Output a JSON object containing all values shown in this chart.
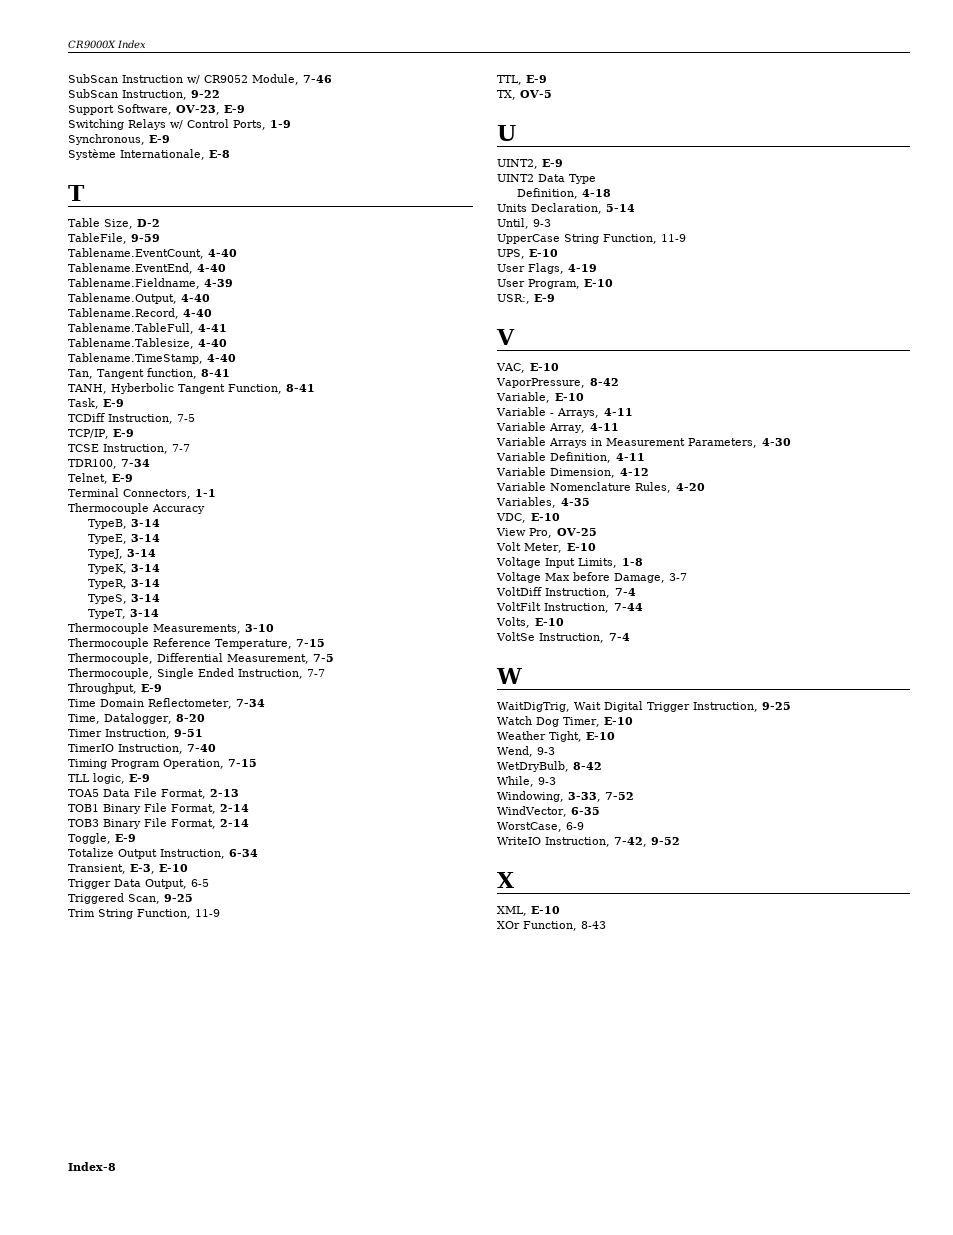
{
  "page_width": 9.54,
  "page_height": 12.35,
  "bg_color": "#ffffff",
  "header_text": "CR9000X Index",
  "footer_text": "Index-8",
  "left_column": [
    {
      "text": "SubScan Instruction w/ CR9052 Module, ",
      "bold_suffix": "7-46",
      "indent": 0
    },
    {
      "text": "SubScan Instruction, ",
      "bold_suffix": "9-22",
      "indent": 0
    },
    {
      "text": "Support Software, ",
      "bold_suffix": "OV-23",
      "extra": ", ",
      "bold_suffix2": "E-9",
      "indent": 0
    },
    {
      "text": "Switching Relays w/ Control Ports, ",
      "bold_suffix": "1-9",
      "indent": 0
    },
    {
      "text": "Synchronous, ",
      "bold_suffix": "E-9",
      "indent": 0
    },
    {
      "text": "Système Internationale, ",
      "bold_suffix": "E-8",
      "indent": 0
    },
    {
      "type": "section",
      "letter": "T"
    },
    {
      "text": "Table Size, ",
      "bold_suffix": "D-2",
      "indent": 0
    },
    {
      "text": "TableFile, ",
      "bold_suffix": "9-59",
      "indent": 0
    },
    {
      "text": "Tablename.EventCount, ",
      "bold_suffix": "4-40",
      "indent": 0
    },
    {
      "text": "Tablename.EventEnd, ",
      "bold_suffix": "4-40",
      "indent": 0
    },
    {
      "text": "Tablename.Fieldname, ",
      "bold_suffix": "4-39",
      "indent": 0
    },
    {
      "text": "Tablename.Output, ",
      "bold_suffix": "4-40",
      "indent": 0
    },
    {
      "text": "Tablename.Record, ",
      "bold_suffix": "4-40",
      "indent": 0
    },
    {
      "text": "Tablename.TableFull, ",
      "bold_suffix": "4-41",
      "indent": 0
    },
    {
      "text": "Tablename.Tablesize, ",
      "bold_suffix": "4-40",
      "indent": 0
    },
    {
      "text": "Tablename.TimeStamp, ",
      "bold_suffix": "4-40",
      "indent": 0
    },
    {
      "text": "Tan, Tangent function, ",
      "bold_suffix": "8-41",
      "indent": 0
    },
    {
      "text": "TANH, Hyberbolic Tangent Function, ",
      "bold_suffix": "8-41",
      "indent": 0
    },
    {
      "text": "Task, ",
      "bold_suffix": "E-9",
      "indent": 0
    },
    {
      "text": "TCDiff Instruction, 7-5",
      "indent": 0
    },
    {
      "text": "TCP/IP, ",
      "bold_suffix": "E-9",
      "indent": 0
    },
    {
      "text": "TCSE Instruction, 7-7",
      "indent": 0
    },
    {
      "text": "TDR100, ",
      "bold_suffix": "7-34",
      "indent": 0
    },
    {
      "text": "Telnet, ",
      "bold_suffix": "E-9",
      "indent": 0
    },
    {
      "text": "Terminal Connectors, ",
      "bold_suffix": "1-1",
      "indent": 0
    },
    {
      "text": "Thermocouple Accuracy",
      "indent": 0
    },
    {
      "text": "TypeB, ",
      "bold_suffix": "3-14",
      "indent": 1
    },
    {
      "text": "TypeE, ",
      "bold_suffix": "3-14",
      "indent": 1
    },
    {
      "text": "TypeJ, ",
      "bold_suffix": "3-14",
      "indent": 1
    },
    {
      "text": "TypeK, ",
      "bold_suffix": "3-14",
      "indent": 1
    },
    {
      "text": "TypeR, ",
      "bold_suffix": "3-14",
      "indent": 1
    },
    {
      "text": "TypeS, ",
      "bold_suffix": "3-14",
      "indent": 1
    },
    {
      "text": "TypeT, ",
      "bold_suffix": "3-14",
      "indent": 1
    },
    {
      "text": "Thermocouple Measurements, ",
      "bold_suffix": "3-10",
      "indent": 0
    },
    {
      "text": "Thermocouple Reference Temperature, ",
      "bold_suffix": "7-15",
      "indent": 0
    },
    {
      "text": "Thermocouple, Differential Measurement, ",
      "bold_suffix": "7-5",
      "indent": 0
    },
    {
      "text": "Thermocouple, Single Ended Instruction, 7-7",
      "indent": 0
    },
    {
      "text": "Throughput, ",
      "bold_suffix": "E-9",
      "indent": 0
    },
    {
      "text": "Time Domain Reflectometer, ",
      "bold_suffix": "7-34",
      "indent": 0
    },
    {
      "text": "Time, Datalogger, ",
      "bold_suffix": "8-20",
      "indent": 0
    },
    {
      "text": "Timer Instruction, ",
      "bold_suffix": "9-51",
      "indent": 0
    },
    {
      "text": "TimerIO Instruction, ",
      "bold_suffix": "7-40",
      "indent": 0
    },
    {
      "text": "Timing Program Operation, ",
      "bold_suffix": "7-15",
      "indent": 0
    },
    {
      "text": "TLL logic, ",
      "bold_suffix": "E-9",
      "indent": 0
    },
    {
      "text": "TOA5 Data File Format, ",
      "bold_suffix": "2-13",
      "indent": 0
    },
    {
      "text": "TOB1 Binary File Format, ",
      "bold_suffix": "2-14",
      "indent": 0
    },
    {
      "text": "TOB3 Binary File Format, ",
      "bold_suffix": "2-14",
      "indent": 0
    },
    {
      "text": "Toggle, ",
      "bold_suffix": "E-9",
      "indent": 0
    },
    {
      "text": "Totalize Output Instruction, ",
      "bold_suffix": "6-34",
      "indent": 0
    },
    {
      "text": "Transient, ",
      "bold_suffix": "E-3",
      "extra": ", ",
      "bold_suffix2": "E-10",
      "indent": 0
    },
    {
      "text": "Trigger Data Output, 6-5",
      "indent": 0
    },
    {
      "text": "Triggered Scan, ",
      "bold_suffix": "9-25",
      "indent": 0
    },
    {
      "text": "Trim String Function, 11-9",
      "indent": 0
    }
  ],
  "right_col_top": [
    {
      "text": "TTL, ",
      "bold_suffix": "E-9",
      "indent": 0
    },
    {
      "text": "TX, ",
      "bold_suffix": "OV-5",
      "indent": 0
    }
  ],
  "right_sections": [
    {
      "letter": "U",
      "items": [
        {
          "text": "UINT2, ",
          "bold_suffix": "E-9",
          "indent": 0
        },
        {
          "text": "UINT2 Data Type",
          "indent": 0
        },
        {
          "text": "Definition, ",
          "bold_suffix": "4-18",
          "indent": 1
        },
        {
          "text": "Units Declaration, ",
          "bold_suffix": "5-14",
          "indent": 0
        },
        {
          "text": "Until, 9-3",
          "indent": 0
        },
        {
          "text": "UpperCase String Function, 11-9",
          "indent": 0
        },
        {
          "text": "UPS, ",
          "bold_suffix": "E-10",
          "indent": 0
        },
        {
          "text": "User Flags, ",
          "bold_suffix": "4-19",
          "indent": 0
        },
        {
          "text": "User Program, ",
          "bold_suffix": "E-10",
          "indent": 0
        },
        {
          "text": "USR:, ",
          "bold_suffix": "E-9",
          "indent": 0
        }
      ]
    },
    {
      "letter": "V",
      "items": [
        {
          "text": "VAC, ",
          "bold_suffix": "E-10",
          "indent": 0
        },
        {
          "text": "VaporPressure, ",
          "bold_suffix": "8-42",
          "indent": 0
        },
        {
          "text": "Variable, ",
          "bold_suffix": "E-10",
          "indent": 0
        },
        {
          "text": "Variable - Arrays, ",
          "bold_suffix": "4-11",
          "indent": 0
        },
        {
          "text": "Variable Array, ",
          "bold_suffix": "4-11",
          "indent": 0
        },
        {
          "text": "Variable Arrays in Measurement Parameters, ",
          "bold_suffix": "4-30",
          "indent": 0
        },
        {
          "text": "Variable Definition, ",
          "bold_suffix": "4-11",
          "indent": 0
        },
        {
          "text": "Variable Dimension, ",
          "bold_suffix": "4-12",
          "indent": 0
        },
        {
          "text": "Variable Nomenclature Rules, ",
          "bold_suffix": "4-20",
          "indent": 0
        },
        {
          "text": "Variables, ",
          "bold_suffix": "4-35",
          "indent": 0
        },
        {
          "text": "VDC, ",
          "bold_suffix": "E-10",
          "indent": 0
        },
        {
          "text": "View Pro, ",
          "bold_suffix": "OV-25",
          "indent": 0
        },
        {
          "text": "Volt Meter, ",
          "bold_suffix": "E-10",
          "indent": 0
        },
        {
          "text": "Voltage Input Limits, ",
          "bold_suffix": "1-8",
          "indent": 0
        },
        {
          "text": "Voltage Max before Damage, 3-7",
          "indent": 0
        },
        {
          "text": "VoltDiff Instruction, ",
          "bold_suffix": "7-4",
          "indent": 0
        },
        {
          "text": "VoltFilt Instruction, ",
          "bold_suffix": "7-44",
          "indent": 0
        },
        {
          "text": "Volts, ",
          "bold_suffix": "E-10",
          "indent": 0
        },
        {
          "text": "VoltSe Instruction, ",
          "bold_suffix": "7-4",
          "indent": 0
        }
      ]
    },
    {
      "letter": "W",
      "items": [
        {
          "text": "WaitDigTrig, Wait Digital Trigger Instruction, ",
          "bold_suffix": "9-25",
          "indent": 0
        },
        {
          "text": "Watch Dog Timer, ",
          "bold_suffix": "E-10",
          "indent": 0
        },
        {
          "text": "Weather Tight, ",
          "bold_suffix": "E-10",
          "indent": 0
        },
        {
          "text": "Wend, 9-3",
          "indent": 0
        },
        {
          "text": "WetDryBulb, ",
          "bold_suffix": "8-42",
          "indent": 0
        },
        {
          "text": "While, 9-3",
          "indent": 0
        },
        {
          "text": "Windowing, ",
          "bold_suffix": "3-33",
          "extra": ", ",
          "bold_suffix2": "7-52",
          "indent": 0
        },
        {
          "text": "WindVector, ",
          "bold_suffix": "6-35",
          "indent": 0
        },
        {
          "text": "WorstCase, 6-9",
          "indent": 0
        },
        {
          "text": "WriteIO Instruction, ",
          "bold_suffix": "7-42",
          "extra": ", ",
          "bold_suffix2": "9-52",
          "indent": 0
        }
      ]
    },
    {
      "letter": "X",
      "items": [
        {
          "text": "XML, ",
          "bold_suffix": "E-10",
          "indent": 0
        },
        {
          "text": "XOr Function, 8-43",
          "indent": 0
        }
      ]
    }
  ]
}
